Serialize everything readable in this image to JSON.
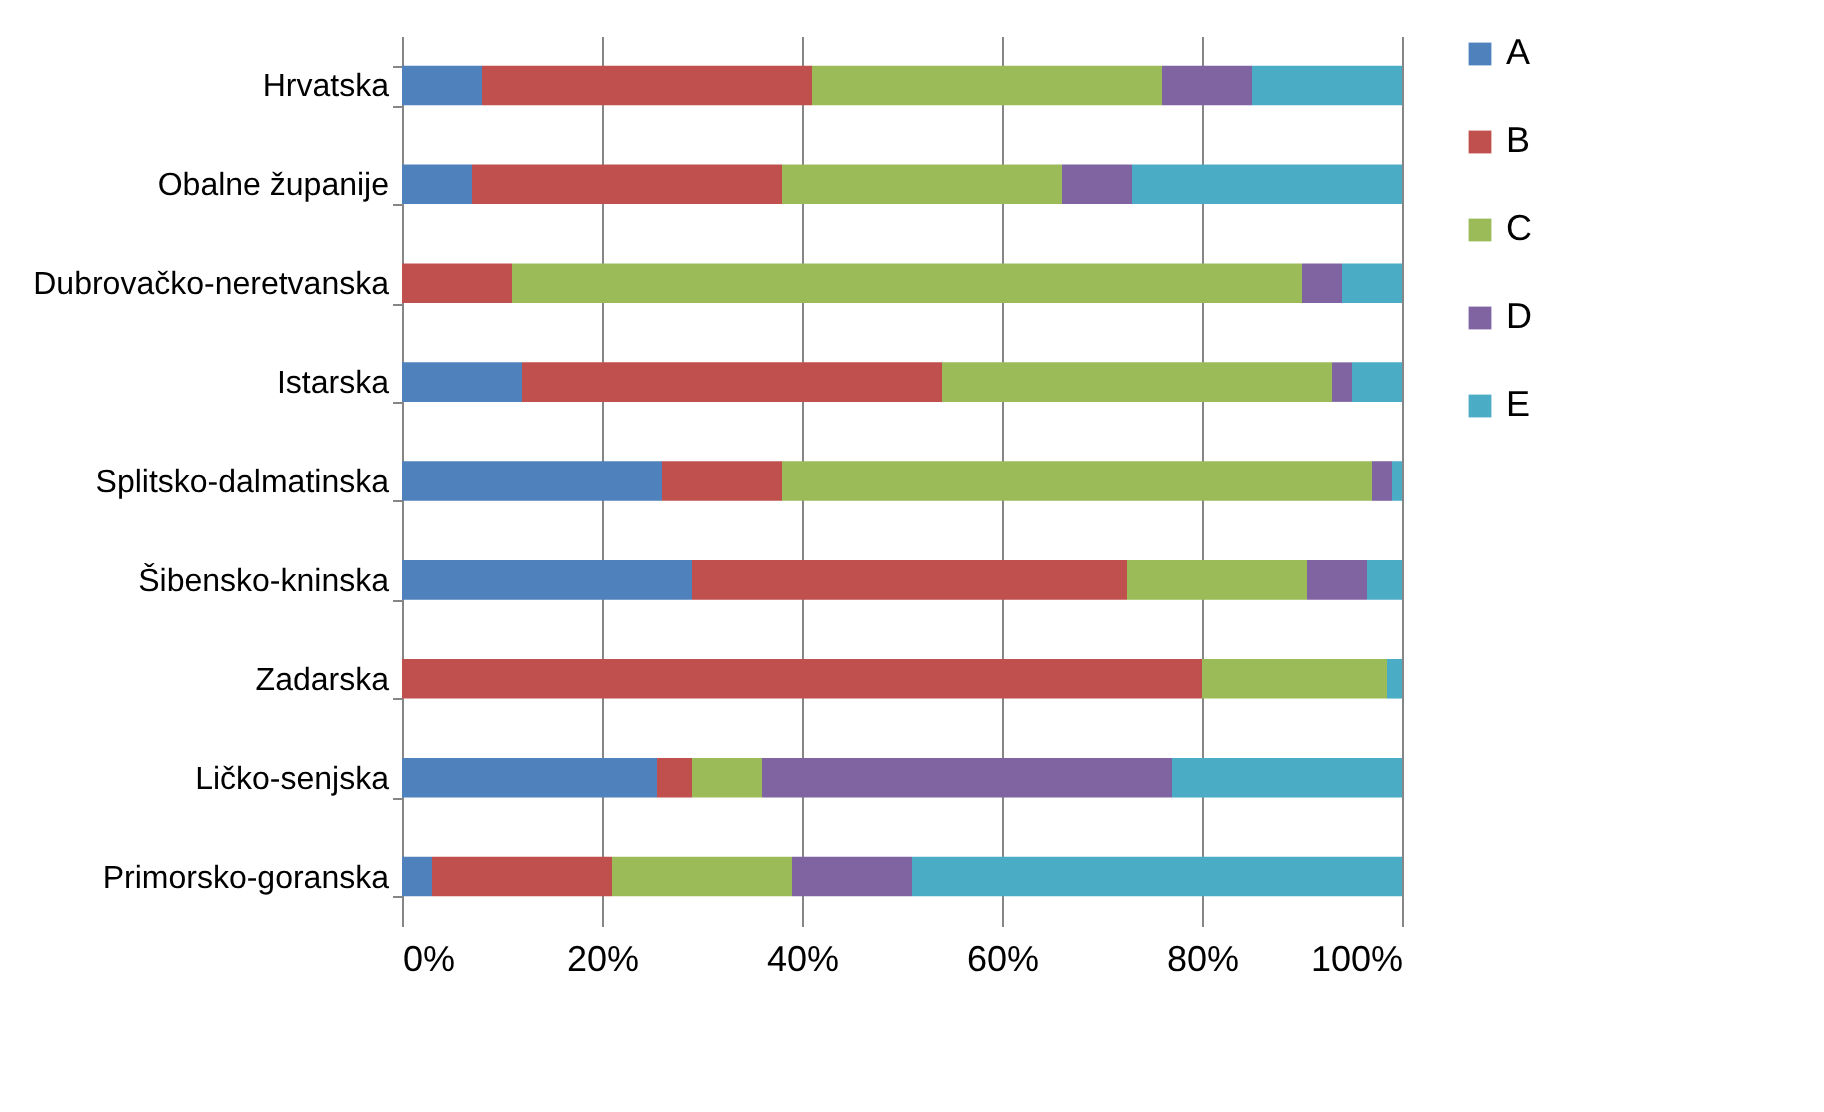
{
  "chart_data": {
    "type": "bar",
    "orientation": "horizontal",
    "stacked": true,
    "categories": [
      "Hrvatska",
      "Obalne županije",
      "Dubrovačko-neretvanska",
      "Istarska",
      "Splitsko-dalmatinska",
      "Šibensko-kninska",
      "Zadarska",
      "Ličko-senjska",
      "Primorsko-goranska"
    ],
    "series": [
      {
        "name": "A",
        "color": "#4f81bd",
        "values": [
          8,
          7,
          0,
          12,
          26,
          29,
          0,
          25.5,
          3
        ]
      },
      {
        "name": "B",
        "color": "#c0504d",
        "values": [
          33,
          31,
          11,
          42,
          12,
          43.5,
          80,
          3.5,
          18
        ]
      },
      {
        "name": "C",
        "color": "#9bbb59",
        "values": [
          35,
          28,
          79,
          39,
          59,
          18,
          18.5,
          7,
          18
        ]
      },
      {
        "name": "D",
        "color": "#8064a2",
        "values": [
          9,
          7,
          4,
          2,
          2,
          6,
          0,
          41,
          12
        ]
      },
      {
        "name": "E",
        "color": "#4bacc6",
        "values": [
          15,
          27,
          6,
          5,
          1,
          3.5,
          1.5,
          23,
          49
        ]
      }
    ],
    "xlim": [
      0,
      100
    ],
    "xticks": [
      {
        "value": 0,
        "label": "0%"
      },
      {
        "value": 20,
        "label": "20%"
      },
      {
        "value": 40,
        "label": "40%"
      },
      {
        "value": 60,
        "label": "60%"
      },
      {
        "value": 80,
        "label": "80%"
      },
      {
        "value": 100,
        "label": "100%"
      }
    ],
    "grid": "x",
    "legend": "right"
  }
}
